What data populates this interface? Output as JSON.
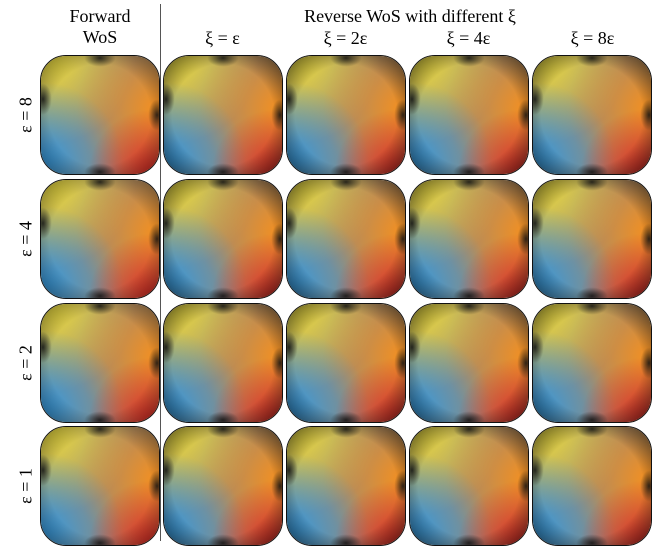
{
  "header": {
    "forward_line1": "Forward",
    "forward_line2": "WoS",
    "reverse_title": "Reverse WoS with different ξ",
    "columns": [
      "ξ = ε",
      "ξ = 2ε",
      "ξ = 4ε",
      "ξ = 8ε"
    ]
  },
  "rows": [
    {
      "label": "ε = 8"
    },
    {
      "label": "ε = 4"
    },
    {
      "label": "ε = 2"
    },
    {
      "label": "ε = 1"
    }
  ],
  "colors": {
    "yellow": "#f4e43a",
    "orange": "#f7901e",
    "blue": "#2e9be6",
    "red": "#e5261e",
    "center": "#9a8a74",
    "dark": "#141414"
  }
}
